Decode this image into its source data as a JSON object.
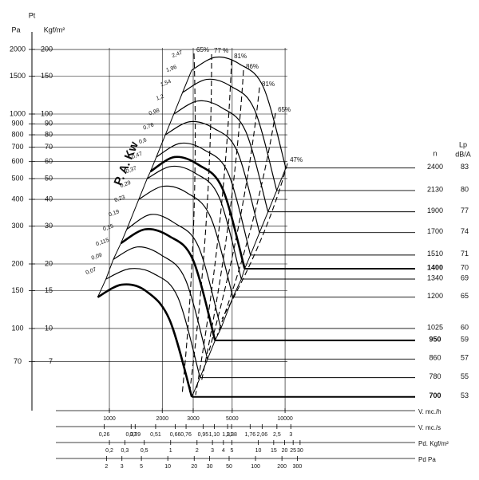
{
  "chart_data": {
    "type": "fan-curve",
    "log_scale": true,
    "color": "#000000",
    "y_label_top": "Pt",
    "y2_label": "Pa",
    "y_label": "Kgf/m²",
    "ylim": [
      4.14,
      241.5
    ],
    "yticks": [
      200,
      150,
      100,
      90,
      80,
      70,
      60,
      50,
      40,
      30,
      20,
      15,
      10,
      7
    ],
    "y2lim": [
      41.4,
      2415
    ],
    "y2ticks": [
      2000,
      1500,
      1000,
      900,
      800,
      700,
      600,
      500,
      400,
      300,
      200,
      150,
      100,
      70
    ],
    "x_axes": [
      {
        "label": "V. mc./h",
        "xlim": [
          496,
          55000
        ],
        "ticks": [
          1000,
          2000,
          3000,
          5000,
          10000
        ]
      },
      {
        "label": "V. mc./s",
        "xlim": [
          0.138,
          15.3
        ],
        "ticks": [
          {
            "value": 0.26,
            "label": "0,26"
          },
          {
            "value": 0.37,
            "label": "0,37"
          },
          {
            "value": 0.39,
            "label": "0,39"
          },
          {
            "value": 0.51,
            "label": "0,51"
          },
          {
            "value": 0.66,
            "label": "0,66"
          },
          {
            "value": 0.76,
            "label": "0,76"
          },
          {
            "value": 0.95,
            "label": "0,95"
          },
          {
            "value": 1.1,
            "label": "1,10"
          },
          {
            "value": 1.31,
            "label": "1,31"
          },
          {
            "value": 1.38,
            "label": "1,38"
          },
          {
            "value": 1.76,
            "label": "1,76"
          },
          {
            "value": 2.06,
            "label": "2,06"
          },
          {
            "value": 2.5,
            "label": "2,5"
          },
          3
        ]
      },
      {
        "label": "Pd. Kgf/m²",
        "xlim": [
          0.049,
          617
        ],
        "ticks": [
          {
            "value": 0.2,
            "label": "0,2"
          },
          {
            "value": 0.3,
            "label": "0,3"
          },
          {
            "value": 0.5,
            "label": "0,5"
          },
          1,
          2,
          3,
          4,
          5,
          10,
          15,
          20,
          25,
          30
        ]
      },
      {
        "label": "Pd   Pa",
        "xlim": [
          0.53,
          6600
        ],
        "ticks": [
          2,
          3,
          5,
          10,
          20,
          30,
          50,
          100,
          200,
          300
        ]
      }
    ],
    "n_label": "n",
    "lp_label": "Lp",
    "lp_unit": "dB/A",
    "series": [
      {
        "n": 2400,
        "lp": 83,
        "bold": false,
        "x": [
          2940,
          4025,
          5510,
          7540,
          10100
        ],
        "values": [
          160,
          184,
          171,
          133,
          56
        ]
      },
      {
        "n": 2130,
        "lp": 80,
        "bold": false,
        "x": [
          2609,
          3572,
          4890,
          6692,
          8964
        ],
        "values": [
          126,
          145,
          135,
          105,
          44
        ]
      },
      {
        "n": 1900,
        "lp": 77,
        "bold": false,
        "x": [
          2328,
          3187,
          4362,
          5969,
          7996
        ],
        "values": [
          100,
          115,
          107,
          83,
          35
        ]
      },
      {
        "n": 1700,
        "lp": 74,
        "bold": false,
        "x": [
          2083,
          2851,
          3903,
          5341,
          7154
        ],
        "values": [
          80,
          92,
          86,
          67,
          28
        ]
      },
      {
        "n": 1510,
        "lp": 71,
        "bold": false,
        "x": [
          1850,
          2532,
          3467,
          4744,
          6355
        ],
        "values": [
          63,
          73,
          68,
          53,
          22
        ]
      },
      {
        "n": 1400,
        "lp": 70,
        "bold": true,
        "x": [
          1715,
          2348,
          3214,
          4398,
          5891
        ],
        "values": [
          54,
          63,
          58,
          45,
          19
        ]
      },
      {
        "n": 1340,
        "lp": 69,
        "bold": false,
        "x": [
          1641,
          2247,
          3076,
          4210,
          5639
        ],
        "values": [
          50,
          57,
          53,
          41,
          17
        ]
      },
      {
        "n": 1200,
        "lp": 65,
        "bold": false,
        "x": [
          1470,
          2013,
          2755,
          3770,
          5050
        ],
        "values": [
          40,
          46,
          43,
          33,
          14
        ]
      },
      {
        "n": 1025,
        "lp": 60,
        "bold": false,
        "x": [
          1256,
          1719,
          2353,
          3220,
          4314
        ],
        "values": [
          29,
          34,
          31,
          24,
          10
        ]
      },
      {
        "n": 950,
        "lp": 59,
        "bold": true,
        "x": [
          1164,
          1593,
          2181,
          2984,
          3997
        ],
        "values": [
          25,
          29,
          27,
          21,
          8.8
        ]
      },
      {
        "n": 860,
        "lp": 57,
        "bold": false,
        "x": [
          1053,
          1442,
          1974,
          2702,
          3619
        ],
        "values": [
          21,
          24,
          22,
          17,
          7.2
        ]
      },
      {
        "n": 780,
        "lp": 55,
        "bold": false,
        "x": [
          956,
          1308,
          1791,
          2451,
          3283
        ],
        "values": [
          17,
          19,
          18,
          14,
          5.9
        ]
      },
      {
        "n": 700,
        "lp": 53,
        "bold": true,
        "x": [
          858,
          1174,
          1607,
          2199,
          2946
        ],
        "values": [
          14,
          16,
          15,
          11,
          4.8
        ]
      }
    ],
    "power_label": "P. A. Kw",
    "power": [
      {
        "value": 2.47,
        "label": "2,47"
      },
      {
        "value": 1.96,
        "label": "1,96"
      },
      {
        "value": 1.54,
        "label": "1,54"
      },
      {
        "value": 1.2,
        "label": "1,2"
      },
      {
        "value": 0.98,
        "label": "0,98"
      },
      {
        "value": 0.76,
        "label": "0,76"
      },
      {
        "value": 0.6,
        "label": "0,6"
      },
      {
        "value": 0.47,
        "label": "0,47"
      },
      {
        "value": 0.37,
        "label": "0,37"
      },
      {
        "value": 0.29,
        "label": "0,29"
      },
      {
        "value": 0.23,
        "label": "0,23"
      },
      {
        "value": 0.19,
        "label": "0,19"
      },
      {
        "value": 0.15,
        "label": "0,15"
      },
      {
        "value": 0.115,
        "label": "0,115"
      },
      {
        "value": 0.09,
        "label": "0,09"
      },
      {
        "value": 0.07,
        "label": "0,07"
      }
    ],
    "efficiency": [
      {
        "value": 65,
        "label": "65%",
        "x": [
          3032,
          2592
        ],
        "values": [
          191.7,
          4.9
        ]
      },
      {
        "value": 77,
        "label": "77 %",
        "x": [
          3818,
          2848
        ],
        "values": [
          190,
          4.9
        ]
      },
      {
        "value": 81,
        "label": "81%",
        "x": [
          4962,
          3096
        ],
        "values": [
          179,
          4.9
        ]
      },
      {
        "value": 86,
        "label": "86%",
        "x": [
          5801,
          3332
        ],
        "values": [
          160,
          5.6
        ]
      },
      {
        "value": 81,
        "label": "81%",
        "x": [
          7153,
          3700
        ],
        "values": [
          133,
          7.9
        ]
      },
      {
        "value": 65,
        "label": "65%",
        "x": [
          8820,
          4108
        ],
        "values": [
          101,
          9.3
        ]
      },
      {
        "value": 47,
        "label": "47%",
        "x": [
          10320,
          4374
        ],
        "values": [
          58.8,
          11.1
        ]
      }
    ]
  }
}
